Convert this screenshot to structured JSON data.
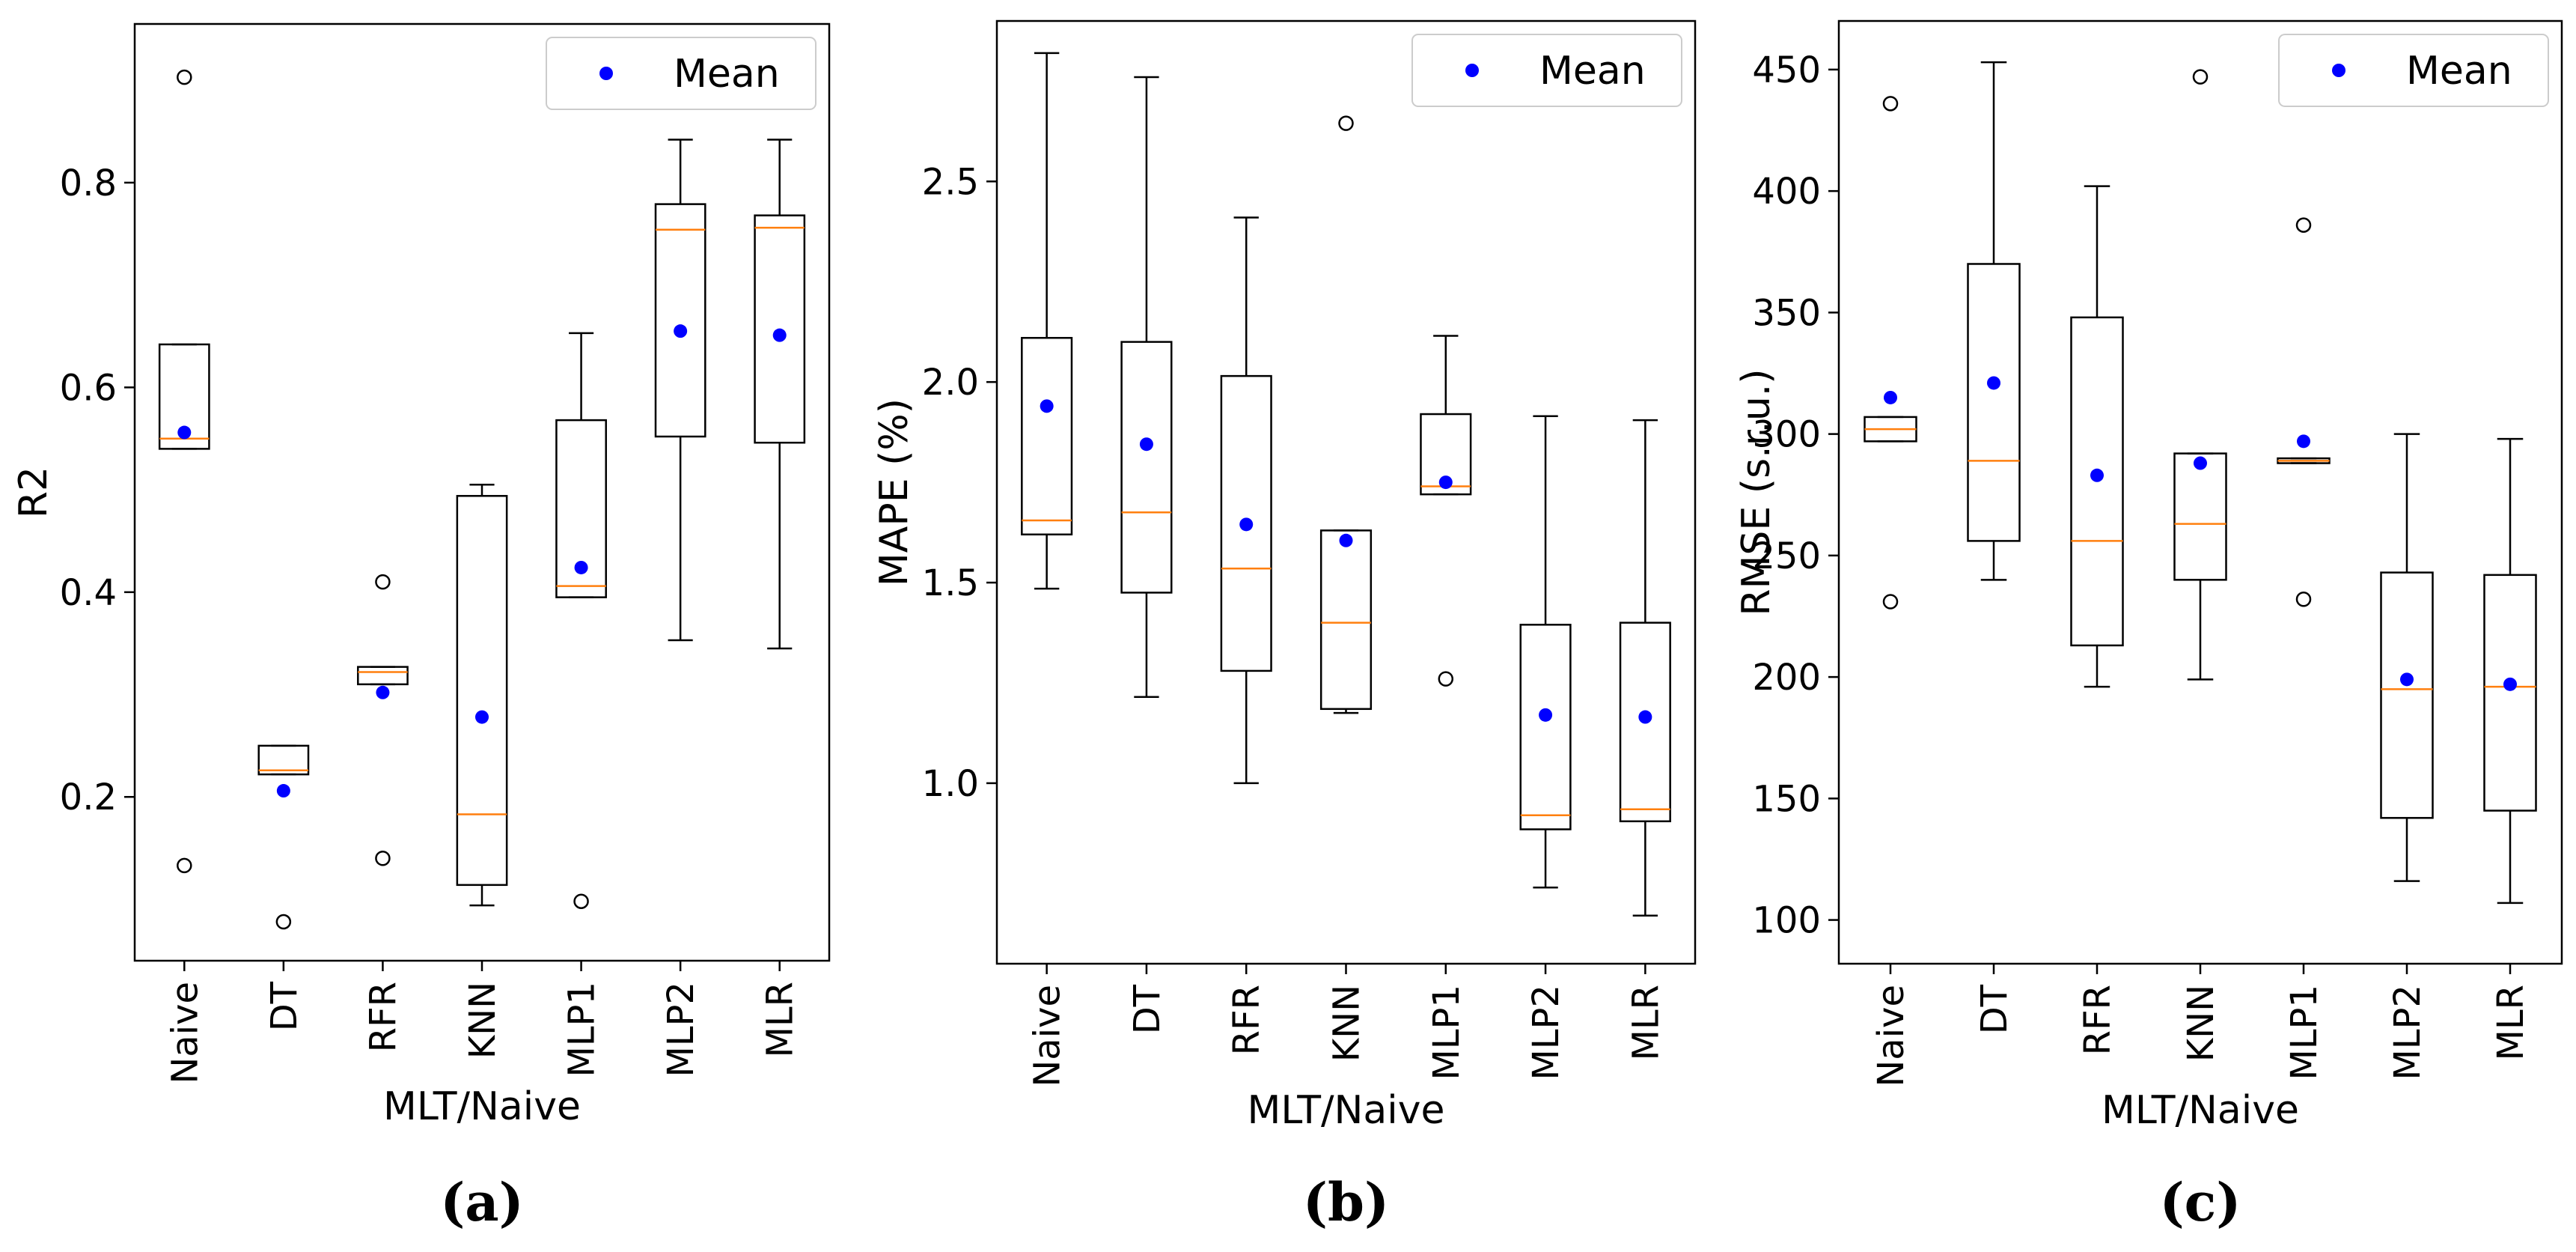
{
  "colors": {
    "mean": "#0000ff",
    "median": "#ff7f0e",
    "box": "#000000",
    "background": "#ffffff"
  },
  "chart_data": [
    {
      "type": "boxplot",
      "caption": "(a)",
      "xlabel": "MLT/Naive",
      "ylabel": "R2",
      "ylim": [
        0.04,
        0.955
      ],
      "yticks": [
        0.2,
        0.4,
        0.6,
        0.8
      ],
      "ytick_labels": [
        "0.2",
        "0.4",
        "0.6",
        "0.8"
      ],
      "legend": {
        "label": "Mean",
        "placement": "top-right"
      },
      "categories": [
        "Naive",
        "DT",
        "RFR",
        "KNN",
        "MLP1",
        "MLP2",
        "MLR"
      ],
      "boxes": [
        {
          "whislo": 0.54,
          "q1": 0.54,
          "med": 0.55,
          "q3": 0.642,
          "whishi": 0.642,
          "mean": 0.556,
          "fliers": [
            0.133,
            0.903
          ]
        },
        {
          "whislo": 0.222,
          "q1": 0.222,
          "med": 0.226,
          "q3": 0.25,
          "whishi": 0.25,
          "mean": 0.206,
          "fliers": [
            0.078
          ]
        },
        {
          "whislo": 0.31,
          "q1": 0.31,
          "med": 0.322,
          "q3": 0.327,
          "whishi": 0.327,
          "mean": 0.302,
          "fliers": [
            0.41,
            0.14
          ]
        },
        {
          "whislo": 0.094,
          "q1": 0.114,
          "med": 0.183,
          "q3": 0.494,
          "whishi": 0.505,
          "mean": 0.278,
          "fliers": []
        },
        {
          "whislo": 0.395,
          "q1": 0.395,
          "med": 0.406,
          "q3": 0.568,
          "whishi": 0.653,
          "mean": 0.424,
          "fliers": [
            0.098
          ]
        },
        {
          "whislo": 0.353,
          "q1": 0.552,
          "med": 0.754,
          "q3": 0.779,
          "whishi": 0.842,
          "mean": 0.655,
          "fliers": []
        },
        {
          "whislo": 0.345,
          "q1": 0.546,
          "med": 0.756,
          "q3": 0.768,
          "whishi": 0.842,
          "mean": 0.651,
          "fliers": []
        }
      ]
    },
    {
      "type": "boxplot",
      "caption": "(b)",
      "xlabel": "MLT/Naive",
      "ylabel": "MAPE (%)",
      "ylim": [
        0.55,
        2.9
      ],
      "yticks": [
        1.0,
        1.5,
        2.0,
        2.5
      ],
      "ytick_labels": [
        "1.0",
        "1.5",
        "2.0",
        "2.5"
      ],
      "legend": {
        "label": "Mean",
        "placement": "top-right"
      },
      "categories": [
        "Naive",
        "DT",
        "RFR",
        "KNN",
        "MLP1",
        "MLP2",
        "MLR"
      ],
      "boxes": [
        {
          "whislo": 1.485,
          "q1": 1.62,
          "med": 1.655,
          "q3": 2.11,
          "whishi": 2.82,
          "mean": 1.94,
          "fliers": []
        },
        {
          "whislo": 1.215,
          "q1": 1.475,
          "med": 1.675,
          "q3": 2.1,
          "whishi": 2.76,
          "mean": 1.845,
          "fliers": []
        },
        {
          "whislo": 1.0,
          "q1": 1.28,
          "med": 1.535,
          "q3": 2.015,
          "whishi": 2.41,
          "mean": 1.645,
          "fliers": []
        },
        {
          "whislo": 1.175,
          "q1": 1.185,
          "med": 1.4,
          "q3": 1.63,
          "whishi": 1.63,
          "mean": 1.605,
          "fliers": [
            2.645
          ]
        },
        {
          "whislo": 1.72,
          "q1": 1.72,
          "med": 1.74,
          "q3": 1.92,
          "whishi": 2.115,
          "mean": 1.75,
          "fliers": [
            1.26
          ]
        },
        {
          "whislo": 0.74,
          "q1": 0.885,
          "med": 0.92,
          "q3": 1.395,
          "whishi": 1.915,
          "mean": 1.17,
          "fliers": []
        },
        {
          "whislo": 0.67,
          "q1": 0.905,
          "med": 0.935,
          "q3": 1.4,
          "whishi": 1.905,
          "mean": 1.165,
          "fliers": []
        }
      ]
    },
    {
      "type": "boxplot",
      "caption": "(c)",
      "xlabel": "MLT/Naive",
      "ylabel": "RMSE (s.r.u.)",
      "ylim": [
        82,
        470
      ],
      "yticks": [
        100,
        150,
        200,
        250,
        300,
        350,
        400,
        450
      ],
      "ytick_labels": [
        "100",
        "150",
        "200",
        "250",
        "300",
        "350",
        "400",
        "450"
      ],
      "legend": {
        "label": "Mean",
        "placement": "top-right"
      },
      "categories": [
        "Naive",
        "DT",
        "RFR",
        "KNN",
        "MLP1",
        "MLP2",
        "MLR"
      ],
      "boxes": [
        {
          "whislo": 297,
          "q1": 297,
          "med": 302,
          "q3": 307,
          "whishi": 307,
          "mean": 315,
          "fliers": [
            436,
            231
          ]
        },
        {
          "whislo": 240,
          "q1": 256,
          "med": 289,
          "q3": 370,
          "whishi": 453,
          "mean": 321,
          "fliers": []
        },
        {
          "whislo": 196,
          "q1": 213,
          "med": 256,
          "q3": 348,
          "whishi": 402,
          "mean": 283,
          "fliers": []
        },
        {
          "whislo": 199,
          "q1": 240,
          "med": 263,
          "q3": 292,
          "whishi": 292,
          "mean": 288,
          "fliers": [
            447
          ]
        },
        {
          "whislo": 288,
          "q1": 288,
          "med": 289,
          "q3": 290,
          "whishi": 290,
          "mean": 297,
          "fliers": [
            386,
            232
          ]
        },
        {
          "whislo": 116,
          "q1": 142,
          "med": 195,
          "q3": 243,
          "whishi": 300,
          "mean": 199,
          "fliers": []
        },
        {
          "whislo": 107,
          "q1": 145,
          "med": 196,
          "q3": 242,
          "whishi": 298,
          "mean": 197,
          "fliers": []
        }
      ]
    }
  ]
}
